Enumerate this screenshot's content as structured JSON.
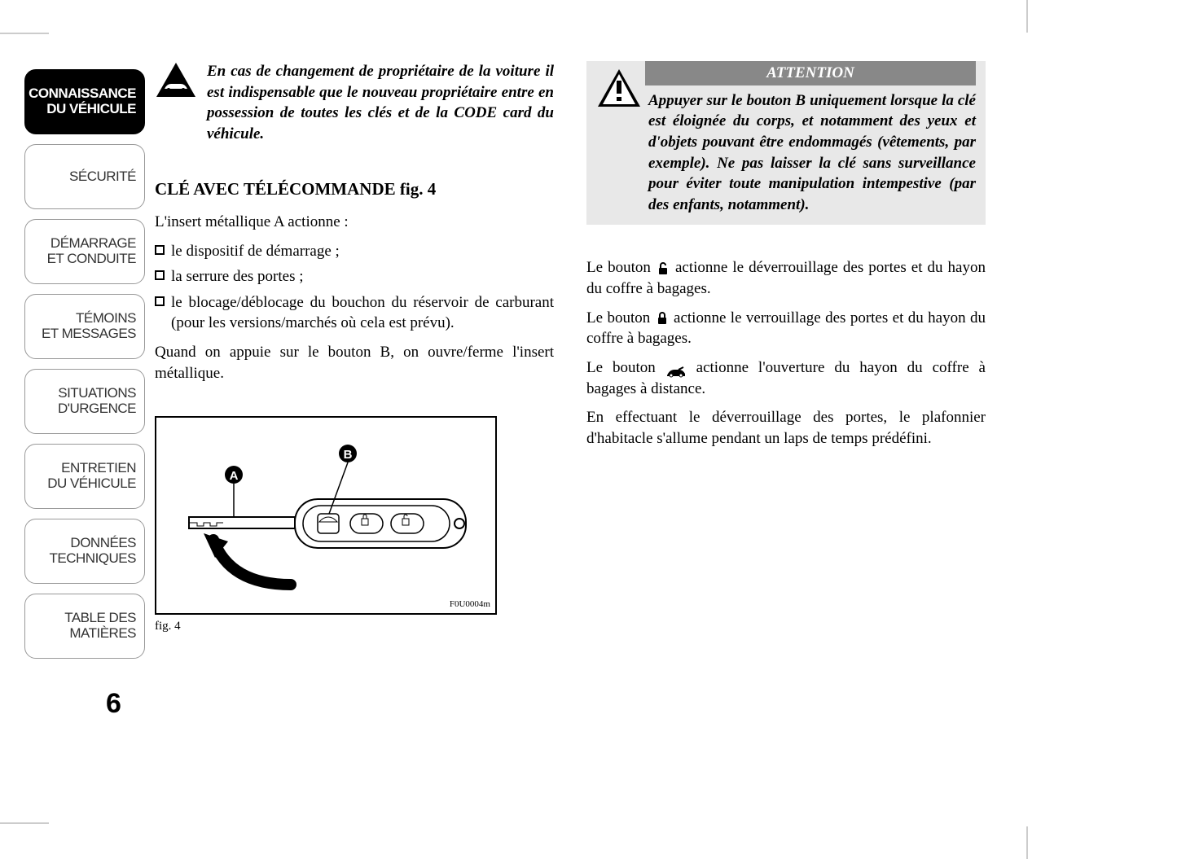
{
  "sidebar": {
    "tabs": [
      {
        "label": "CONNAISSANCE\nDU VÉHICULE",
        "active": true
      },
      {
        "label": "SÉCURITÉ",
        "active": false
      },
      {
        "label": "DÉMARRAGE\nET CONDUITE",
        "active": false
      },
      {
        "label": "TÉMOINS\nET MESSAGES",
        "active": false
      },
      {
        "label": "SITUATIONS\nD'URGENCE",
        "active": false
      },
      {
        "label": "ENTRETIEN\nDU VÉHICULE",
        "active": false
      },
      {
        "label": "DONNÉES\nTECHNIQUES",
        "active": false
      },
      {
        "label": "TABLE DES MATIÈRES",
        "active": false
      }
    ]
  },
  "left_column": {
    "note_text": "En cas de changement de propriétaire de la voiture il est indispensable que le nouveau propriétaire entre en possession de toutes les clés et de la CODE card du véhicule.",
    "heading": "CLÉ AVEC TÉLÉCOMMANDE fig. 4",
    "intro": "L'insert métallique A actionne :",
    "bullets": [
      "le dispositif de démarrage ;",
      "la serrure des portes ;",
      "le blocage/déblocage du bouchon du réservoir de carburant (pour les versions/marchés où cela est prévu)."
    ],
    "after_bullets": "Quand on appuie sur le bouton B, on ouvre/ferme l'insert métallique.",
    "figure": {
      "caption": "fig. 4",
      "code": "F0U0004m",
      "label_a": "A",
      "label_b": "B"
    }
  },
  "right_column": {
    "attention_title": "ATTENTION",
    "attention_text": "Appuyer sur le bouton B uniquement lorsque la clé est éloignée du corps, et notamment des yeux et d'objets pouvant être endommagés (vêtements, par exemple). Ne pas laisser la clé sans surveillance pour éviter toute manipulation intempestive (par des enfants, notamment).",
    "p1_a": "Le bouton ",
    "p1_b": " actionne le déverrouillage des portes et du hayon du coffre à bagages.",
    "p2_a": "Le bouton ",
    "p2_b": " actionne le verrouillage des portes et du hayon du coffre à bagages.",
    "p3_a": "Le bouton ",
    "p3_b": " actionne l'ouverture du hayon du coffre à bagages à distance.",
    "p4": "En effectuant le déverrouillage des portes, le plafonnier d'habitacle s'allume pendant un laps de temps prédéfini."
  },
  "page_number": "6",
  "colors": {
    "tab_active_bg": "#000000",
    "tab_active_fg": "#ffffff",
    "tab_border": "#999999",
    "attention_bg": "#e8e8e8",
    "attention_header_bg": "#888888"
  }
}
